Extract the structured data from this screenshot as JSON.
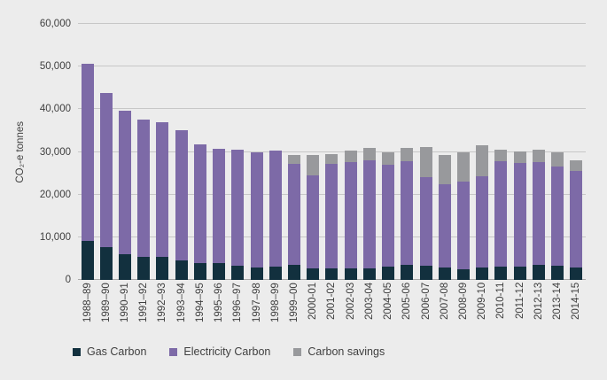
{
  "chart_data": {
    "type": "bar",
    "stacked": true,
    "title": "",
    "xlabel": "",
    "ylabel": "CO₂-e tonnes",
    "ylim": [
      0,
      60000
    ],
    "ytick_step": 10000,
    "ytick_labels": [
      "0",
      "10,000",
      "20,000",
      "30,000",
      "40,000",
      "50,000",
      "60,000"
    ],
    "grid": true,
    "legend_position": "bottom",
    "categories": [
      "1988–89",
      "1989–90",
      "1990–91",
      "1991–92",
      "1992–93",
      "1993–94",
      "1994–95",
      "1995–96",
      "1996–97",
      "1997–98",
      "1998–99",
      "1999–00",
      "2000-01",
      "2001-02",
      "2002-03",
      "2003-04",
      "2004-05",
      "2005-06",
      "2006-07",
      "2007-08",
      "2008-09",
      "2009-10",
      "2010-11",
      "2011-12",
      "2012-13",
      "2013-14",
      "2014-15"
    ],
    "series": [
      {
        "name": "Gas Carbon",
        "color": "#12303e",
        "values": [
          9200,
          7600,
          6000,
          5300,
          5500,
          4600,
          3900,
          4000,
          3400,
          2900,
          3200,
          3500,
          2800,
          2800,
          2800,
          2800,
          3100,
          3500,
          3400,
          3000,
          2500,
          3000,
          3200,
          3200,
          3600,
          3300,
          3000
        ]
      },
      {
        "name": "Electricity Carbon",
        "color": "#7d6aa7",
        "values": [
          41500,
          36200,
          33700,
          32200,
          31500,
          30500,
          27900,
          26800,
          27100,
          26900,
          27200,
          23700,
          21800,
          24300,
          24800,
          25300,
          23800,
          24400,
          20700,
          19500,
          20600,
          21400,
          24600,
          24200,
          24100,
          23300,
          22500
        ]
      },
      {
        "name": "Carbon savings",
        "color": "#98999c",
        "values": [
          0,
          0,
          0,
          0,
          0,
          0,
          0,
          0,
          0,
          0,
          0,
          2100,
          4600,
          2300,
          2700,
          2900,
          3100,
          3100,
          7100,
          6700,
          6900,
          7200,
          2800,
          2800,
          2900,
          3200,
          2600
        ]
      }
    ]
  },
  "colors": {
    "background": "#ececec",
    "gridline": "#c7c7c7",
    "axis_line": "#a8a8a8",
    "text": "#3f3f3f"
  }
}
